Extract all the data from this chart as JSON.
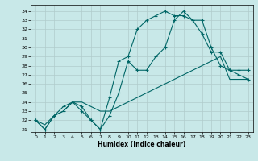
{
  "xlabel": "Humidex (Indice chaleur)",
  "bg_color": "#c8e8e8",
  "grid_color": "#b0cccc",
  "line_color": "#006666",
  "xlim": [
    -0.5,
    23.5
  ],
  "ylim": [
    20.7,
    34.7
  ],
  "xticks": [
    0,
    1,
    2,
    3,
    4,
    5,
    6,
    7,
    8,
    9,
    10,
    11,
    12,
    13,
    14,
    15,
    16,
    17,
    18,
    19,
    20,
    21,
    22,
    23
  ],
  "yticks": [
    21,
    22,
    23,
    24,
    25,
    26,
    27,
    28,
    29,
    30,
    31,
    32,
    33,
    34
  ],
  "line1_x": [
    0,
    1,
    2,
    3,
    4,
    5,
    6,
    7,
    8,
    9,
    10,
    11,
    12,
    13,
    14,
    15,
    16,
    17,
    18,
    19,
    20,
    21,
    22,
    23
  ],
  "line1_y": [
    22,
    21,
    22.5,
    23,
    24,
    23,
    22,
    21,
    22.5,
    25,
    28.5,
    27.5,
    27.5,
    29,
    30,
    33,
    34,
    33,
    31.5,
    29.5,
    29.5,
    27.5,
    27,
    26.5
  ],
  "line2_x": [
    0,
    1,
    2,
    3,
    4,
    5,
    6,
    7,
    8,
    9,
    10,
    11,
    12,
    13,
    14,
    15,
    16,
    17,
    18,
    19,
    20,
    21,
    22,
    23
  ],
  "line2_y": [
    22,
    21,
    22.5,
    23.5,
    24,
    23.5,
    22,
    21,
    24.5,
    28.5,
    29,
    32,
    33,
    33.5,
    34,
    33.5,
    33.5,
    33,
    33,
    30,
    28,
    27.5,
    27.5,
    27.5
  ],
  "line3_x": [
    0,
    1,
    2,
    3,
    4,
    5,
    6,
    7,
    8,
    9,
    10,
    11,
    12,
    13,
    14,
    15,
    16,
    17,
    18,
    19,
    20,
    21,
    22,
    23
  ],
  "line3_y": [
    22,
    21.5,
    22.5,
    23,
    24,
    24,
    23.5,
    23,
    23,
    23.5,
    24,
    24.5,
    25,
    25.5,
    26,
    26.5,
    27,
    27.5,
    28,
    28.5,
    29,
    26.5,
    26.5,
    26.5
  ]
}
